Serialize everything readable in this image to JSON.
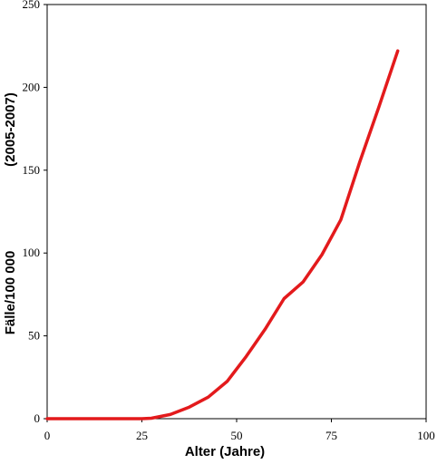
{
  "chart_data": {
    "type": "line",
    "title": "",
    "xlabel": "Alter (Jahre)",
    "ylabel_parts": [
      "Fälle/100 000",
      "(2005-2007)"
    ],
    "xlim": [
      0,
      100
    ],
    "ylim": [
      0,
      250
    ],
    "x_ticks": [
      0,
      25,
      50,
      75,
      100
    ],
    "y_ticks": [
      0,
      50,
      100,
      150,
      200,
      250
    ],
    "grid": false,
    "legend": "none",
    "series": [
      {
        "color": "#e31a1c",
        "x": [
          0,
          5,
          10,
          15,
          20,
          25,
          27.5,
          32.5,
          37.5,
          42.5,
          47.5,
          52.5,
          57.5,
          62.5,
          67.5,
          72.5,
          77.5,
          82.5,
          87.5,
          92.5
        ],
        "y": [
          0,
          0,
          0,
          0,
          0,
          0,
          0.3,
          2.5,
          7,
          13,
          22.5,
          37.5,
          54,
          72.5,
          82.5,
          99,
          120,
          155,
          188,
          222
        ]
      }
    ]
  }
}
